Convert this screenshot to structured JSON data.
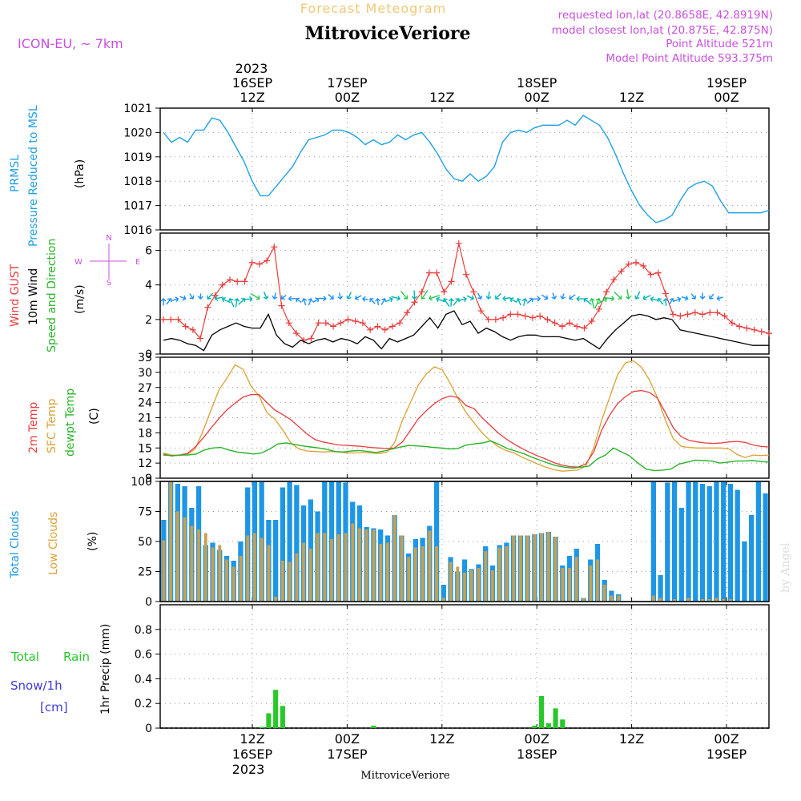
{
  "header": {
    "product": "Forecast Meteogram",
    "station": "MitroviceVeriore",
    "model": "ICON-EU, ~ 7km",
    "requested": "requested lon,lat (20.8658E, 42.8919N)",
    "closest": "model closest lon,lat (20.875E, 42.875N)",
    "point_alt": "Point Altitude 521m",
    "model_alt": "Model Point Altitude 593.375m",
    "footer_station": "MitroviceVeriore",
    "watermark": "by Angel"
  },
  "colors": {
    "pressure": "#1ea0e6",
    "wind_gust": "#e83c3c",
    "wind10": "#000000",
    "temp": "#e83c3c",
    "sfc_temp": "#dca032",
    "dewpt": "#28b428",
    "total_clouds": "#1e96e6",
    "low_clouds": "#c8a050",
    "rain": "#28c828",
    "snow": "#3c3cdc",
    "title": "#000000",
    "product": "#f0c878",
    "info": "#c850dc"
  },
  "time_axis": {
    "top_year": "2023",
    "top_labels": [
      {
        "day": "16SEP",
        "time": "12Z"
      },
      {
        "day": "17SEP",
        "time": "00Z"
      },
      {
        "day": "",
        "time": "12Z"
      },
      {
        "day": "18SEP",
        "time": "00Z"
      },
      {
        "day": "",
        "time": "12Z"
      },
      {
        "day": "19SEP",
        "time": "00Z"
      }
    ],
    "bottom_labels": [
      {
        "time": "12Z",
        "day": "16SEP"
      },
      {
        "time": "00Z",
        "day": "17SEP"
      },
      {
        "time": "12Z",
        "day": ""
      },
      {
        "time": "00Z",
        "day": "18SEP"
      },
      {
        "time": "12Z",
        "day": ""
      },
      {
        "time": "00Z",
        "day": "19SEP"
      }
    ],
    "bottom_year": "2023"
  },
  "panel_labels": {
    "pressure": {
      "short": "PRMSL",
      "long": "Pressure Reduced to MSL",
      "unit": "(hPa)"
    },
    "wind": {
      "gust": "Wind GUST",
      "wind10": "10m Wind",
      "dir": "Speed and Direction",
      "unit": "(m/s)",
      "compass_n": "N",
      "compass_s": "S",
      "compass_w": "W",
      "compass_e": "E"
    },
    "temp": {
      "t2m": "2m Temp",
      "sfc": "SFC Temp",
      "dewpt": "dewpt Temp",
      "unit": "(C)"
    },
    "clouds": {
      "total": "Total Clouds",
      "low": "Low Clouds",
      "unit": "(%)"
    },
    "precip": {
      "rain_a": "Total",
      "rain_b": "Rain",
      "snow": "Snow/1h",
      "snow_unit": "[cm]",
      "axis": "1hr Precip (mm)"
    }
  },
  "chart_data": [
    {
      "type": "line",
      "name_panel": "pressure",
      "x_start_hour": 0,
      "x_step_hours": 1,
      "ylim": [
        1016,
        1021
      ],
      "yticks": [
        1016,
        1017,
        1018,
        1019,
        1020,
        1021
      ],
      "series": [
        {
          "name": "PRMSL",
          "values": [
            1020.0,
            1019.6,
            1019.8,
            1019.6,
            1020.1,
            1020.1,
            1020.6,
            1020.5,
            1020.0,
            1019.4,
            1018.8,
            1018.0,
            1017.4,
            1017.4,
            1017.8,
            1018.2,
            1018.6,
            1019.2,
            1019.7,
            1019.8,
            1019.9,
            1020.1,
            1020.1,
            1020.0,
            1019.8,
            1019.5,
            1019.7,
            1019.5,
            1019.6,
            1019.9,
            1019.7,
            1019.9,
            1020.0,
            1019.6,
            1019.1,
            1018.5,
            1018.1,
            1018.0,
            1018.3,
            1018.0,
            1018.2,
            1018.6,
            1019.6,
            1020.0,
            1020.1,
            1020.0,
            1020.2,
            1020.3,
            1020.3,
            1020.3,
            1020.5,
            1020.3,
            1020.7,
            1020.5,
            1020.3,
            1019.8,
            1019.1,
            1018.3,
            1017.6,
            1017.0,
            1016.6,
            1016.3,
            1016.4,
            1016.6,
            1017.2,
            1017.7,
            1017.9,
            1018.0,
            1017.8,
            1017.2,
            1016.7,
            1016.7,
            1016.7,
            1016.7,
            1016.7,
            1016.8
          ]
        }
      ]
    },
    {
      "type": "line",
      "name_panel": "wind",
      "ylim": [
        0,
        7
      ],
      "yticks": [
        0,
        2,
        4,
        6
      ],
      "series": [
        {
          "name": "Wind GUST",
          "values": [
            2.0,
            2.0,
            2.0,
            1.6,
            1.4,
            0.9,
            2.7,
            3.4,
            4.0,
            4.3,
            4.2,
            4.2,
            5.3,
            5.2,
            5.4,
            6.2,
            2.8,
            1.8,
            1.2,
            0.8,
            0.9,
            1.8,
            1.8,
            1.6,
            1.8,
            2.0,
            1.9,
            1.8,
            1.4,
            1.6,
            1.4,
            1.6,
            1.8,
            2.4,
            3.0,
            3.6,
            4.7,
            4.7,
            3.6,
            4.2,
            6.4,
            4.6,
            3.6,
            2.5,
            2.0,
            2.0,
            2.1,
            2.3,
            2.3,
            2.2,
            2.1,
            2.2,
            2.0,
            1.8,
            1.6,
            1.8,
            1.6,
            1.5,
            1.9,
            2.6,
            3.6,
            4.3,
            4.8,
            5.2,
            5.3,
            5.1,
            4.6,
            4.7,
            3.5,
            2.3,
            2.2,
            2.3,
            2.4,
            2.3,
            2.4,
            2.4,
            2.2,
            1.8,
            1.6,
            1.5,
            1.4,
            1.3,
            1.2
          ]
        },
        {
          "name": "10m Wind",
          "values": [
            0.8,
            0.9,
            0.8,
            0.6,
            0.5,
            0.2,
            1.1,
            1.4,
            1.6,
            1.8,
            1.6,
            1.5,
            1.5,
            2.3,
            1.1,
            0.6,
            0.4,
            0.8,
            0.6,
            0.8,
            0.9,
            0.7,
            0.9,
            0.8,
            0.6,
            1.0,
            0.8,
            0.3,
            0.9,
            0.7,
            0.9,
            1.1,
            1.6,
            2.1,
            1.5,
            2.3,
            2.5,
            1.7,
            1.9,
            1.2,
            1.5,
            1.3,
            1.0,
            0.8,
            1.0,
            1.1,
            1.1,
            1.0,
            1.0,
            1.0,
            0.9,
            0.8,
            0.9,
            0.6,
            0.3,
            0.9,
            1.4,
            1.8,
            2.2,
            2.3,
            2.2,
            2.0,
            2.1,
            2.0,
            1.4,
            1.3,
            1.2,
            1.1,
            1.0,
            0.9,
            0.8,
            0.7,
            0.6,
            0.5,
            0.5,
            0.5
          ]
        }
      ]
    },
    {
      "type": "line",
      "name_panel": "temp",
      "ylim": [
        9,
        33
      ],
      "yticks": [
        9,
        12,
        15,
        18,
        21,
        24,
        27,
        30,
        33
      ],
      "series": [
        {
          "name": "2m Temp",
          "values": [
            13.6,
            13.5,
            13.6,
            13.9,
            15.2,
            17.0,
            19.0,
            20.9,
            22.6,
            23.9,
            25.1,
            25.6,
            25.6,
            24.0,
            22.5,
            21.6,
            20.6,
            19.2,
            17.8,
            16.7,
            16.2,
            15.9,
            15.6,
            15.5,
            15.4,
            15.3,
            15.1,
            15.0,
            14.9,
            15.0,
            16.2,
            18.5,
            20.8,
            22.4,
            23.8,
            24.8,
            25.3,
            25.0,
            23.4,
            22.8,
            21.0,
            19.5,
            18.0,
            16.8,
            15.8,
            14.9,
            14.1,
            13.4,
            12.8,
            12.1,
            11.6,
            11.3,
            11.2,
            11.8,
            14.2,
            18.5,
            21.5,
            23.8,
            25.2,
            26.2,
            26.4,
            26.0,
            24.9,
            22.0,
            19.0,
            17.2,
            16.5,
            16.2,
            16.0,
            15.9,
            16.0,
            16.2,
            16.3,
            16.1,
            15.6,
            15.3,
            15.2
          ]
        },
        {
          "name": "SFC Temp",
          "values": [
            14.0,
            13.6,
            13.5,
            13.7,
            14.8,
            18.5,
            22.6,
            26.6,
            28.9,
            31.5,
            30.6,
            27.3,
            25.3,
            22.0,
            20.7,
            18.5,
            16.0,
            14.8,
            14.4,
            14.3,
            14.2,
            14.3,
            14.2,
            14.0,
            14.0,
            14.1,
            14.0,
            13.9,
            14.1,
            16.0,
            20.5,
            24.0,
            27.5,
            29.7,
            31.1,
            30.5,
            27.8,
            24.7,
            22.0,
            20.0,
            18.0,
            16.5,
            15.3,
            14.5,
            14.0,
            13.2,
            12.5,
            11.8,
            11.2,
            10.7,
            10.4,
            10.5,
            10.6,
            11.4,
            15.0,
            20.5,
            25.0,
            29.5,
            31.9,
            32.3,
            31.0,
            28.5,
            25.0,
            20.5,
            16.8,
            15.3,
            15.1,
            15.0,
            15.0,
            15.0,
            15.0,
            14.8,
            13.7,
            13.1,
            13.6,
            13.5,
            13.6
          ]
        },
        {
          "name": "dewpt Temp",
          "values": [
            13.8,
            13.4,
            13.6,
            13.6,
            13.8,
            14.6,
            15.0,
            15.1,
            14.6,
            14.2,
            14.0,
            13.8,
            14.0,
            14.8,
            15.8,
            16.0,
            15.7,
            15.4,
            15.2,
            15.0,
            14.7,
            14.3,
            14.2,
            14.4,
            14.5,
            14.3,
            14.1,
            14.4,
            14.8,
            15.2,
            15.5,
            15.4,
            15.3,
            15.1,
            15.0,
            14.8,
            14.9,
            15.6,
            15.8,
            16.0,
            16.4,
            15.7,
            14.9,
            14.4,
            13.9,
            13.2,
            12.6,
            12.0,
            11.5,
            11.2,
            11.0,
            11.2,
            11.4,
            12.8,
            13.6,
            15.0,
            14.2,
            13.4,
            12.0,
            10.8,
            10.5,
            10.6,
            10.8,
            11.8,
            12.2,
            12.6,
            12.5,
            12.4,
            12.0,
            12.2,
            12.4,
            12.4,
            12.5,
            12.3,
            12.2
          ]
        }
      ]
    },
    {
      "type": "bar",
      "name_panel": "clouds",
      "ylim": [
        0,
        100
      ],
      "yticks": [
        0,
        25,
        50,
        75,
        100
      ],
      "series": [
        {
          "name": "Total Clouds",
          "values": [
            68,
            100,
            98,
            96,
            78,
            96,
            47,
            49,
            43,
            38,
            34,
            50,
            95,
            100,
            100,
            68,
            68,
            95,
            100,
            97,
            80,
            85,
            75,
            100,
            100,
            100,
            99,
            83,
            80,
            62,
            61,
            60,
            55,
            72,
            55,
            40,
            52,
            53,
            63,
            100,
            14,
            37,
            25,
            35,
            27,
            31,
            46,
            30,
            47,
            49,
            55,
            55,
            55,
            56,
            57,
            58,
            54,
            30,
            38,
            44,
            3,
            35,
            48,
            18,
            9,
            6,
            0,
            0,
            0,
            0,
            100,
            22,
            99,
            100,
            78,
            100,
            100,
            98,
            96,
            100,
            100,
            98,
            93,
            50,
            72,
            100,
            90
          ]
        },
        {
          "name": "Low Clouds",
          "values": [
            51,
            100,
            75,
            70,
            63,
            60,
            57,
            45,
            47,
            35,
            29,
            38,
            55,
            57,
            53,
            47,
            4,
            34,
            33,
            40,
            49,
            44,
            57,
            57,
            52,
            56,
            57,
            65,
            61,
            60,
            60,
            48,
            49,
            72,
            55,
            37,
            45,
            46,
            59,
            46,
            3,
            33,
            29,
            24,
            26,
            28,
            42,
            26,
            45,
            46,
            55,
            55,
            55,
            56,
            57,
            58,
            54,
            28,
            28,
            37,
            3,
            30,
            35,
            14,
            5,
            5,
            0,
            0,
            0,
            0,
            5,
            3,
            0,
            2,
            0,
            3,
            0,
            2,
            2,
            3,
            2,
            2,
            0,
            0,
            0,
            0,
            0
          ]
        }
      ]
    },
    {
      "type": "bar",
      "name_panel": "precip",
      "ylim": [
        0,
        1.0
      ],
      "yticks": [
        0,
        0.2,
        0.4,
        0.6,
        0.8
      ],
      "series": [
        {
          "name": "Total Rain",
          "values": [
            0,
            0,
            0,
            0,
            0,
            0,
            0,
            0,
            0,
            0,
            0,
            0,
            0,
            0,
            0.01,
            0.12,
            0.31,
            0.18,
            0,
            0,
            0,
            0,
            0,
            0,
            0,
            0,
            0,
            0,
            0,
            0,
            0.02,
            0,
            0,
            0,
            0,
            0,
            0,
            0,
            0,
            0,
            0,
            0,
            0,
            0,
            0,
            0,
            0,
            0,
            0,
            0,
            0,
            0,
            0,
            0.02,
            0.26,
            0.04,
            0.16,
            0.07,
            0,
            0,
            0,
            0,
            0,
            0,
            0,
            0,
            0,
            0,
            0,
            0,
            0,
            0,
            0,
            0,
            0,
            0,
            0,
            0,
            0,
            0,
            0,
            0,
            0,
            0,
            0,
            0,
            0
          ]
        }
      ]
    }
  ]
}
